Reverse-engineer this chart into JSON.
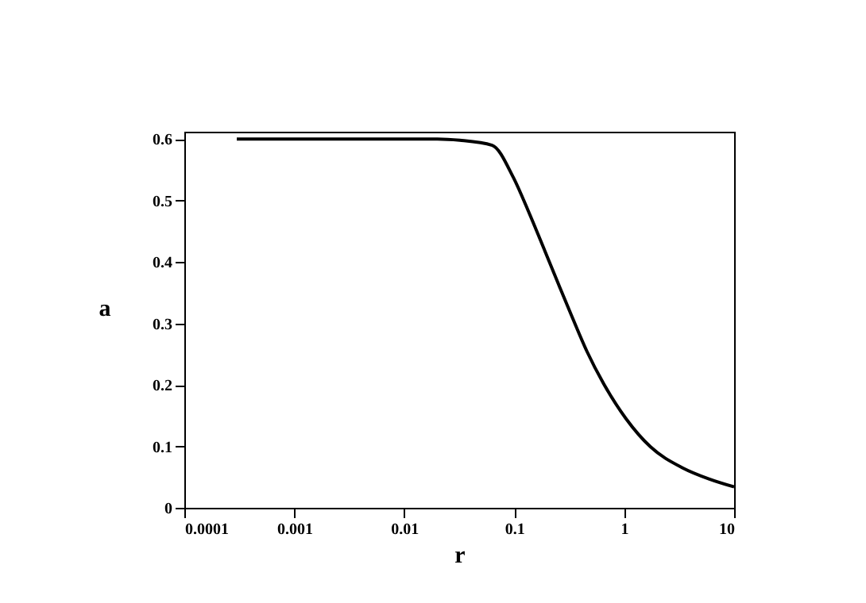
{
  "chart_data": {
    "type": "line",
    "xlabel": "r",
    "ylabel": "a",
    "x": [
      0.0003,
      0.001,
      0.005,
      0.02,
      0.032,
      0.063,
      0.098,
      0.138,
      0.19,
      0.25,
      0.33,
      0.46,
      0.65,
      1.04,
      1.74,
      3.4,
      5.9,
      10
    ],
    "series": [
      {
        "color": "#000000",
        "values": [
          0.6,
          0.6,
          0.6,
          0.6,
          0.598,
          0.59,
          0.538,
          0.478,
          0.418,
          0.366,
          0.314,
          0.254,
          0.202,
          0.145,
          0.099,
          0.065,
          0.047,
          0.034
        ]
      }
    ],
    "log": "x",
    "xlim": [
      0.0001,
      10
    ],
    "xticks": [
      0.0001,
      0.001,
      0.01,
      0.1,
      1,
      10
    ],
    "ylim": [
      0,
      0.612
    ],
    "yticks": [
      0,
      0.1,
      0.2,
      0.3,
      0.4,
      0.5,
      0.6
    ],
    "grid": false,
    "legend": false,
    "marker": "none",
    "line_style": "solid"
  }
}
